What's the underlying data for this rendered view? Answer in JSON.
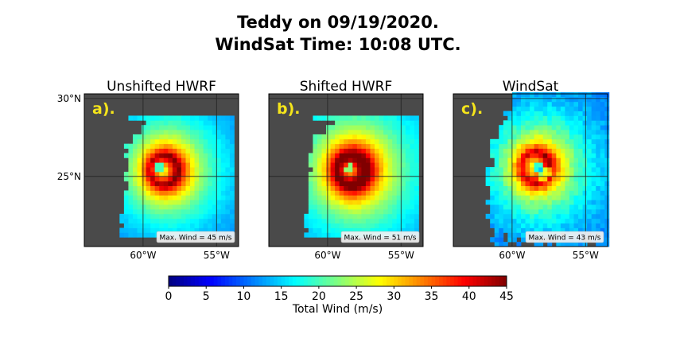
{
  "title": [
    "Teddy on 09/19/2020.",
    "WindSat Time: 10:08 UTC."
  ],
  "chart_data": [
    {
      "type": "heatmap",
      "title": "Unshifted HWRF",
      "panel_label": "a).",
      "max_wind_label": "Max. Wind = 45 m/s",
      "max_wind": 45,
      "x_ticks": [
        {
          "value": -60,
          "label": "60°W"
        },
        {
          "value": -55,
          "label": "55°W"
        }
      ],
      "y_ticks": [
        {
          "value": 30,
          "label": "30°N"
        },
        {
          "value": 25,
          "label": "25°N"
        }
      ],
      "xlim": [
        -64,
        -53.5
      ],
      "ylim": [
        20.5,
        30.3
      ],
      "storm_center": [
        -58.6,
        25.4
      ],
      "eye_offset": [
        -0.35,
        0.25
      ],
      "data_extent": {
        "lon": [
          -61.6,
          -53.9
        ],
        "lat": [
          21.1,
          28.8
        ]
      },
      "grid": true
    },
    {
      "type": "heatmap",
      "title": "Shifted HWRF",
      "panel_label": "b).",
      "max_wind_label": "Max. Wind = 51 m/s",
      "max_wind": 51,
      "x_ticks": [
        {
          "value": -60,
          "label": "60°W"
        },
        {
          "value": -55,
          "label": "55°W"
        }
      ],
      "y_ticks": [
        {
          "value": 30,
          "label": "30°N"
        },
        {
          "value": 25,
          "label": "25°N"
        }
      ],
      "xlim": [
        -64,
        -53.5
      ],
      "ylim": [
        20.5,
        30.3
      ],
      "storm_center": [
        -58.4,
        25.4
      ],
      "eye_offset": [
        -0.1,
        0.1
      ],
      "data_extent": {
        "lon": [
          -61.6,
          -53.9
        ],
        "lat": [
          21.1,
          28.8
        ]
      },
      "grid": true
    },
    {
      "type": "heatmap",
      "title": "WindSat",
      "panel_label": "c).",
      "max_wind_label": "Max. Wind = 43 m/s",
      "max_wind": 43,
      "x_ticks": [
        {
          "value": -60,
          "label": "60°W"
        },
        {
          "value": -55,
          "label": "55°W"
        }
      ],
      "y_ticks": [
        {
          "value": 30,
          "label": "30°N"
        },
        {
          "value": 25,
          "label": "25°N"
        }
      ],
      "xlim": [
        -64,
        -53.5
      ],
      "ylim": [
        20.5,
        30.3
      ],
      "storm_center": [
        -58.4,
        25.6
      ],
      "eye_offset": [
        0.2,
        0.1
      ],
      "data_extent": {
        "lon": [
          -61.8,
          -53.6
        ],
        "lat": [
          20.5,
          30.3
        ]
      },
      "grid": true
    }
  ],
  "colorbar": {
    "label": "Total Wind (m/s)",
    "min": 0,
    "max": 45,
    "ticks": [
      0,
      5,
      10,
      15,
      20,
      25,
      30,
      35,
      40,
      45
    ],
    "colormap": "jet"
  },
  "colors": {
    "land": "#4a4a4a",
    "grid": "#222222"
  }
}
